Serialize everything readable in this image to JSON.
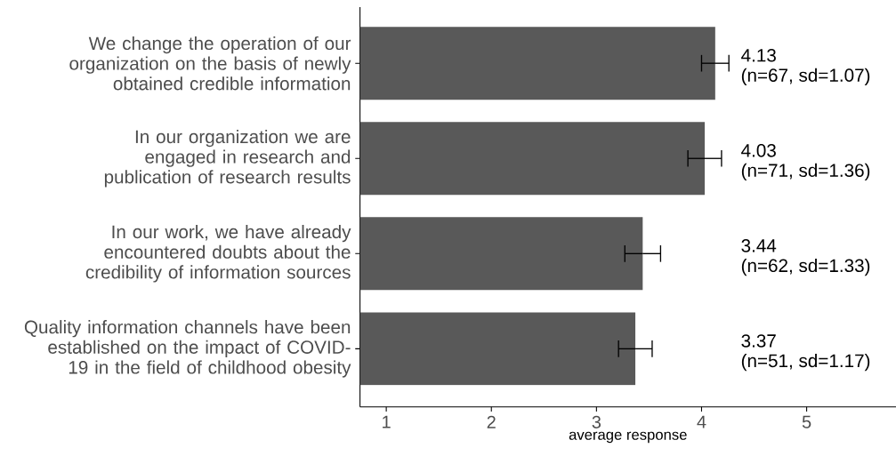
{
  "chart_data": {
    "type": "bar",
    "orientation": "horizontal",
    "xlabel": "average response",
    "categories": [
      "We change the operation of our organization on the basis of newly obtained credible information",
      "In our organization we are engaged in research and publication of research results",
      "In our work, we have already encountered doubts about the credibility of information sources",
      "Quality information channels have been established on the impact of COVID-19 in the field of childhood obesity"
    ],
    "values": [
      4.13,
      4.03,
      3.44,
      3.37
    ],
    "errors": [
      0.13,
      0.16,
      0.17,
      0.16
    ],
    "color": "#595959",
    "value_labels": [
      "4.13",
      "4.03",
      "3.44",
      "3.37"
    ],
    "annotations": [
      "(n=67, sd=1.07)",
      "(n=71, sd=1.36)",
      "(n=62, sd=1.33)",
      "(n=51, sd=1.17)"
    ],
    "xlim": [
      0.75,
      5.85
    ],
    "xticks": [
      1,
      2,
      3,
      4,
      5
    ],
    "grid": false
  }
}
